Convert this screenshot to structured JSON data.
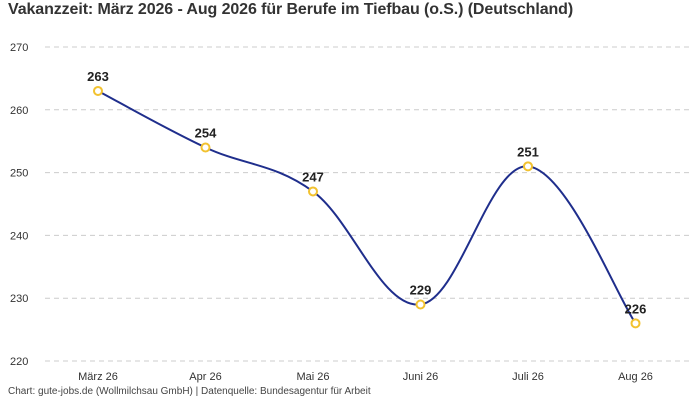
{
  "chart_data": {
    "type": "line",
    "title": "Vakanzzeit: März 2026 - Aug 2026 für Berufe im Tiefbau (o.S.) (Deutschland)",
    "categories": [
      "März 26",
      "Apr 26",
      "Mai 26",
      "Juni 26",
      "Juli 26",
      "Aug 26"
    ],
    "values": [
      263,
      254,
      247,
      229,
      251,
      226
    ],
    "data_labels": [
      "263",
      "254",
      "247",
      "229",
      "251",
      "226"
    ],
    "yticks": [
      "270",
      "260",
      "250",
      "240",
      "230",
      "220"
    ],
    "ylim": [
      220,
      270
    ],
    "xlabel": "",
    "ylabel": "",
    "grid": "horizontal-dashed",
    "legend": "none",
    "colors": {
      "line": "#1f2e8c",
      "marker_stroke": "#f2c230",
      "marker_fill": "#ffffff",
      "grid": "#cccccc",
      "title": "#333333"
    }
  },
  "footer": "Chart: gute-jobs.de (Wollmilchsau GmbH) | Datenquelle: Bundesagentur für Arbeit"
}
